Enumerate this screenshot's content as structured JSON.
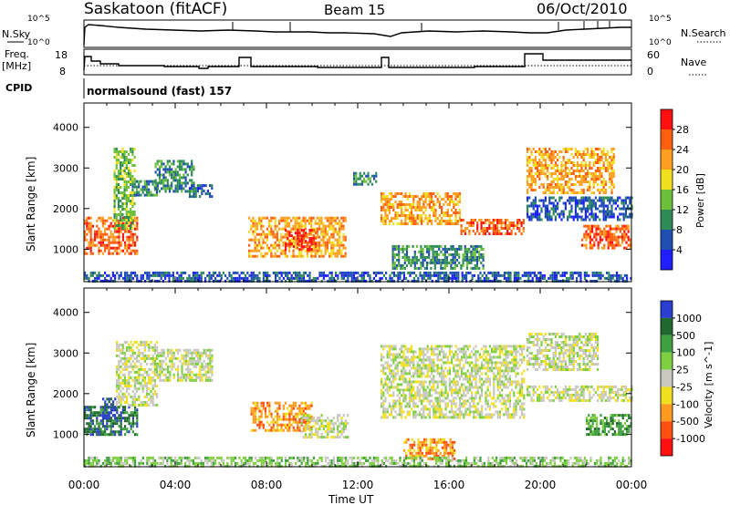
{
  "header": {
    "station": "Saskatoon (fitACF)",
    "beam": "Beam 15",
    "date": "06/Oct/2010"
  },
  "strip_panels": {
    "nsky_label": "N.Sky",
    "nsearch_label": "N.Search",
    "nsearch_ticks": [
      "10^5",
      "10^0"
    ],
    "nsky_ticks": [
      "10^5",
      "10^0"
    ],
    "freq_label_1": "Freq.",
    "freq_label_2": "[MHz]",
    "freq_ticks": [
      "18",
      "8"
    ],
    "nave_label": "Nave",
    "nave_ticks": [
      "60",
      "0"
    ],
    "cpid_label": "CPID",
    "cpid_value": "normalsound (fast) 157"
  },
  "colors": {
    "power": [
      "#1e1eff",
      "#1f4fb0",
      "#2e8b57",
      "#6cbf3a",
      "#f0e020",
      "#ffa020",
      "#ff6010",
      "#ff1010"
    ],
    "velocity": [
      "#2a3fd0",
      "#206830",
      "#3fa03f",
      "#7fd040",
      "#c8c8c0",
      "#f0e020",
      "#ff9a20",
      "#ff5010",
      "#ff1010"
    ]
  },
  "chart_data": [
    {
      "type": "heatmap",
      "name": "power",
      "ylabel": "Slant Range [km]",
      "xlabel": "Time UT",
      "xlim": [
        "00:00",
        "24:00"
      ],
      "x_ticks": [
        "00:00",
        "04:00",
        "08:00",
        "12:00",
        "16:00",
        "20:00",
        "00:00"
      ],
      "ylim": [
        200,
        4600
      ],
      "y_ticks": [
        1000,
        2000,
        3000,
        4000
      ],
      "colorbar_label": "Power [dB]",
      "colorbar_ticks": [
        4,
        8,
        12,
        16,
        20,
        24,
        28
      ],
      "regions": [
        {
          "t0": 0.0,
          "t1": 2.3,
          "r0": 900,
          "r1": 1800,
          "level": 6
        },
        {
          "t0": 1.3,
          "t1": 2.2,
          "r0": 1500,
          "r1": 3500,
          "level": 3
        },
        {
          "t0": 2.1,
          "t1": 3.2,
          "r0": 2300,
          "r1": 2700,
          "level": 2
        },
        {
          "t0": 3.1,
          "t1": 4.8,
          "r0": 2400,
          "r1": 3200,
          "level": 2
        },
        {
          "t0": 4.6,
          "t1": 5.6,
          "r0": 2300,
          "r1": 2600,
          "level": 1
        },
        {
          "t0": 7.2,
          "t1": 11.5,
          "r0": 800,
          "r1": 1800,
          "level": 5
        },
        {
          "t0": 8.8,
          "t1": 10.2,
          "r0": 1000,
          "r1": 1500,
          "level": 7
        },
        {
          "t0": 11.8,
          "t1": 12.8,
          "r0": 2600,
          "r1": 2900,
          "level": 2
        },
        {
          "t0": 13.0,
          "t1": 16.5,
          "r0": 1600,
          "r1": 2400,
          "level": 5
        },
        {
          "t0": 16.5,
          "t1": 19.3,
          "r0": 1350,
          "r1": 1750,
          "level": 6
        },
        {
          "t0": 13.5,
          "t1": 17.5,
          "r0": 500,
          "r1": 1100,
          "level": 2
        },
        {
          "t0": 19.4,
          "t1": 23.2,
          "r0": 2400,
          "r1": 3500,
          "level": 5
        },
        {
          "t0": 21.8,
          "t1": 24.0,
          "r0": 1000,
          "r1": 1600,
          "level": 6
        },
        {
          "t0": 19.4,
          "t1": 24.0,
          "r0": 1700,
          "r1": 2300,
          "level": 1
        },
        {
          "t0": 0.0,
          "t1": 24.0,
          "r0": 200,
          "r1": 450,
          "level": 1
        }
      ]
    },
    {
      "type": "heatmap",
      "name": "velocity",
      "ylabel": "Slant Range [km]",
      "xlabel": "Time UT",
      "xlim": [
        "00:00",
        "24:00"
      ],
      "x_ticks": [
        "00:00",
        "04:00",
        "08:00",
        "12:00",
        "16:00",
        "20:00",
        "00:00"
      ],
      "ylim": [
        200,
        4600
      ],
      "y_ticks": [
        1000,
        2000,
        3000,
        4000
      ],
      "colorbar_label": "Velocity [m s^-1]",
      "colorbar_ticks": [
        1000,
        500,
        100,
        25,
        -25,
        -100,
        -500,
        -1000
      ],
      "regions": [
        {
          "t0": 0.0,
          "t1": 2.3,
          "r0": 1000,
          "r1": 1700,
          "level": 1
        },
        {
          "t0": 0.8,
          "t1": 1.4,
          "r0": 1400,
          "r1": 1900,
          "level": 0
        },
        {
          "t0": 1.4,
          "t1": 3.2,
          "r0": 1700,
          "r1": 3300,
          "level": 4
        },
        {
          "t0": 3.2,
          "t1": 5.6,
          "r0": 2300,
          "r1": 3100,
          "level": 4
        },
        {
          "t0": 7.3,
          "t1": 10.0,
          "r0": 1100,
          "r1": 1800,
          "level": 6
        },
        {
          "t0": 9.5,
          "t1": 11.6,
          "r0": 900,
          "r1": 1500,
          "level": 4
        },
        {
          "t0": 13.0,
          "t1": 19.3,
          "r0": 1400,
          "r1": 3200,
          "level": 4
        },
        {
          "t0": 14.0,
          "t1": 16.2,
          "r0": 400,
          "r1": 900,
          "level": 6
        },
        {
          "t0": 19.4,
          "t1": 22.5,
          "r0": 2600,
          "r1": 3500,
          "level": 4
        },
        {
          "t0": 22.0,
          "t1": 24.0,
          "r0": 1000,
          "r1": 1500,
          "level": 2
        },
        {
          "t0": 19.4,
          "t1": 24.0,
          "r0": 1800,
          "r1": 2200,
          "level": 4
        },
        {
          "t0": 0.0,
          "t1": 24.0,
          "r0": 200,
          "r1": 450,
          "level": 3
        }
      ]
    }
  ]
}
